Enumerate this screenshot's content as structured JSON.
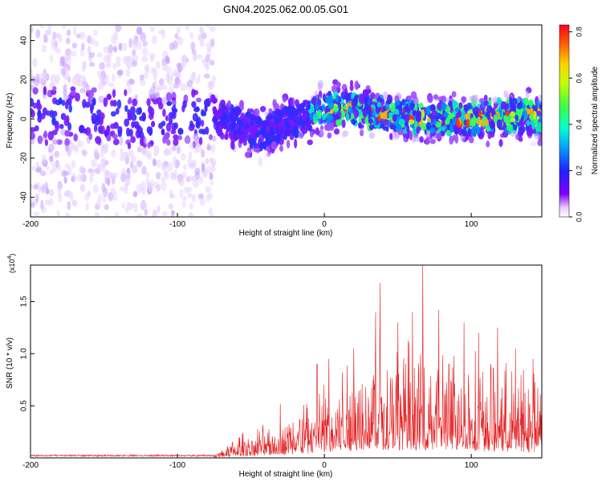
{
  "figure_title": "GN04.2025.062.00.05.G01",
  "chart_data": [
    {
      "type": "heatmap",
      "xlabel": "Height of straight line (km)",
      "ylabel": "Frequency (Hz)",
      "xlim": [
        -200,
        148
      ],
      "ylim": [
        -50,
        48
      ],
      "xticks": [
        -200,
        -100,
        0,
        100
      ],
      "yticks": [
        -40,
        -20,
        0,
        20,
        40
      ],
      "colorbar": {
        "label": "Normalized spectral amplitude",
        "range": [
          0,
          0.83
        ],
        "ticks": [
          "0.0",
          "0.2",
          "0.4",
          "0.6",
          "0.8"
        ],
        "colormap": "rainbow"
      },
      "ridge": [
        {
          "x": -200,
          "y": 1
        },
        {
          "x": -170,
          "y": 2
        },
        {
          "x": -140,
          "y": 0
        },
        {
          "x": -110,
          "y": 0
        },
        {
          "x": -80,
          "y": 1
        },
        {
          "x": -65,
          "y": -1
        },
        {
          "x": -50,
          "y": -6
        },
        {
          "x": -40,
          "y": -8
        },
        {
          "x": -30,
          "y": -3
        },
        {
          "x": -15,
          "y": 0
        },
        {
          "x": 0,
          "y": 5
        },
        {
          "x": 15,
          "y": 6
        },
        {
          "x": 30,
          "y": 3
        },
        {
          "x": 50,
          "y": 2
        },
        {
          "x": 70,
          "y": 0
        },
        {
          "x": 90,
          "y": 0
        },
        {
          "x": 110,
          "y": 1
        },
        {
          "x": 130,
          "y": 2
        },
        {
          "x": 148,
          "y": 1
        }
      ]
    },
    {
      "type": "line",
      "xlabel": "Height of straight line (km)",
      "ylabel": "SNR (10 * v/v)",
      "y_scale_label_base": "(x10",
      "y_scale_label_exp": "4",
      "y_scale_label_close": ")",
      "xlim": [
        -200,
        148
      ],
      "ylim": [
        0,
        1.85
      ],
      "xticks": [
        -200,
        -100,
        0,
        100
      ],
      "yticks": [
        "0.5",
        "1.0",
        "1.5"
      ],
      "color": "#e31a1c",
      "envelope": [
        {
          "x": -200,
          "y": 0.02
        },
        {
          "x": -100,
          "y": 0.02
        },
        {
          "x": -75,
          "y": 0.03
        },
        {
          "x": -60,
          "y": 0.18
        },
        {
          "x": -40,
          "y": 0.28
        },
        {
          "x": -20,
          "y": 0.4
        },
        {
          "x": 0,
          "y": 0.65
        },
        {
          "x": 20,
          "y": 0.85
        },
        {
          "x": 40,
          "y": 0.95
        },
        {
          "x": 60,
          "y": 0.95
        },
        {
          "x": 80,
          "y": 0.9
        },
        {
          "x": 100,
          "y": 0.85
        },
        {
          "x": 120,
          "y": 0.75
        },
        {
          "x": 148,
          "y": 0.7
        }
      ],
      "peaks": [
        {
          "x": -30,
          "y": 0.52
        },
        {
          "x": -5,
          "y": 0.9
        },
        {
          "x": 3,
          "y": 0.95
        },
        {
          "x": 20,
          "y": 1.05
        },
        {
          "x": 35,
          "y": 1.4
        },
        {
          "x": 38,
          "y": 1.68
        },
        {
          "x": 50,
          "y": 1.3
        },
        {
          "x": 60,
          "y": 1.4
        },
        {
          "x": 67,
          "y": 1.85
        },
        {
          "x": 78,
          "y": 1.42
        },
        {
          "x": 95,
          "y": 1.3
        },
        {
          "x": 105,
          "y": 1.2
        },
        {
          "x": 118,
          "y": 1.25
        },
        {
          "x": 130,
          "y": 1.05
        },
        {
          "x": 142,
          "y": 0.95
        }
      ]
    }
  ]
}
